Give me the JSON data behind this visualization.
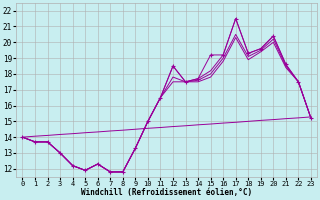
{
  "xlabel": "Windchill (Refroidissement éolien,°C)",
  "hours": [
    0,
    1,
    2,
    3,
    4,
    5,
    6,
    7,
    8,
    9,
    10,
    11,
    12,
    13,
    14,
    15,
    16,
    17,
    18,
    19,
    20,
    21,
    22,
    23
  ],
  "line_actual": [
    14.0,
    13.7,
    13.7,
    13.0,
    12.2,
    11.9,
    12.3,
    11.8,
    11.8,
    13.3,
    15.0,
    16.5,
    18.5,
    17.5,
    17.7,
    19.2,
    19.2,
    21.5,
    19.3,
    19.6,
    20.4,
    18.6,
    17.5,
    15.2
  ],
  "line_max": [
    14.0,
    13.7,
    13.7,
    13.0,
    12.2,
    11.9,
    12.3,
    11.8,
    11.8,
    13.3,
    15.0,
    16.5,
    18.5,
    17.5,
    17.7,
    18.2,
    19.2,
    21.5,
    19.3,
    19.6,
    20.4,
    18.6,
    17.5,
    15.2
  ],
  "line_mid": [
    14.0,
    13.7,
    13.7,
    13.0,
    12.2,
    11.9,
    12.3,
    11.8,
    11.8,
    13.3,
    15.0,
    16.5,
    17.8,
    17.5,
    17.6,
    18.0,
    19.0,
    20.5,
    19.1,
    19.5,
    20.2,
    18.5,
    17.5,
    15.2
  ],
  "line_min": [
    14.0,
    13.7,
    13.7,
    13.0,
    12.2,
    11.9,
    12.3,
    11.8,
    11.8,
    13.3,
    15.0,
    16.5,
    17.5,
    17.5,
    17.5,
    17.8,
    18.8,
    20.3,
    18.9,
    19.4,
    20.0,
    18.4,
    17.5,
    15.2
  ],
  "line_trend": [
    14.0,
    14.06,
    14.11,
    14.17,
    14.22,
    14.28,
    14.33,
    14.39,
    14.44,
    14.5,
    14.56,
    14.61,
    14.67,
    14.72,
    14.78,
    14.83,
    14.89,
    14.94,
    15.0,
    15.06,
    15.11,
    15.17,
    15.22,
    15.28
  ],
  "ylim": [
    11.5,
    22.5
  ],
  "xlim": [
    -0.5,
    23.5
  ],
  "yticks": [
    12,
    13,
    14,
    15,
    16,
    17,
    18,
    19,
    20,
    21,
    22
  ],
  "xticks": [
    0,
    1,
    2,
    3,
    4,
    5,
    6,
    7,
    8,
    9,
    10,
    11,
    12,
    13,
    14,
    15,
    16,
    17,
    18,
    19,
    20,
    21,
    22,
    23
  ],
  "line_color": "#990099",
  "bg_color": "#c8eef0",
  "grid_color": "#b0b0b0"
}
